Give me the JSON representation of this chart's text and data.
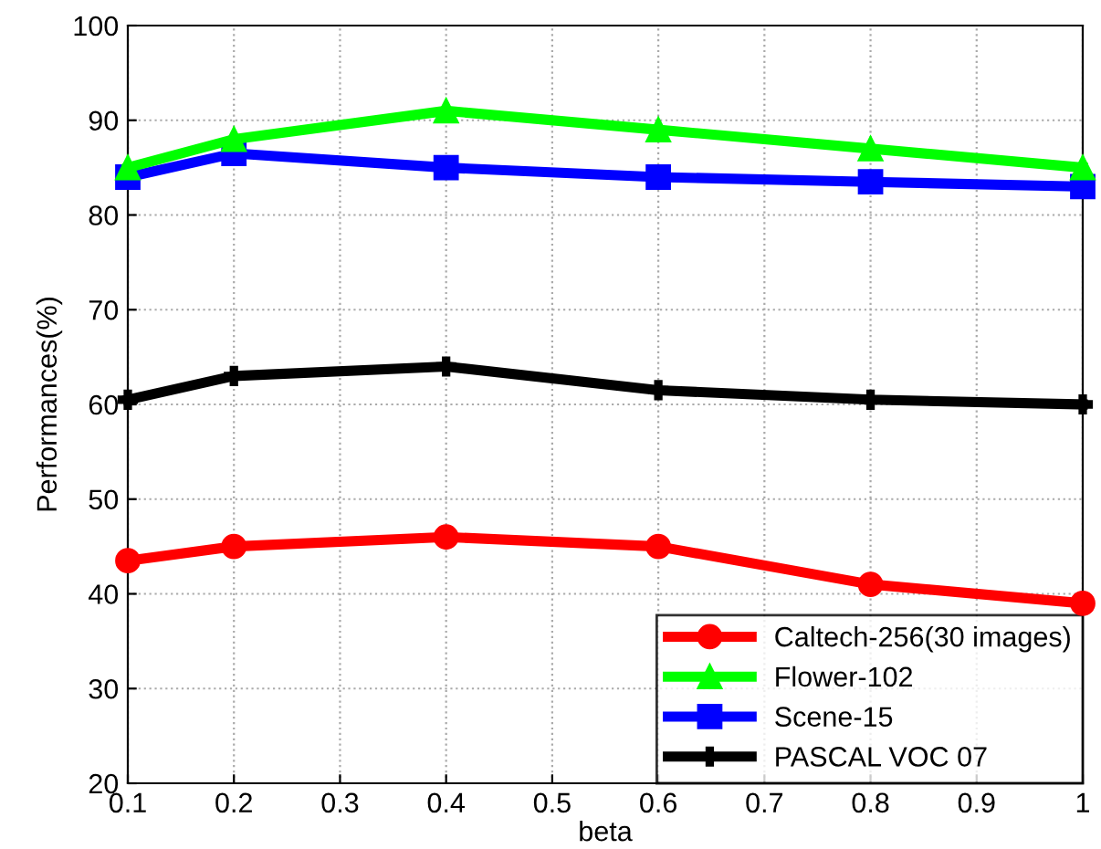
{
  "chart_data": {
    "type": "line",
    "xlabel": "beta",
    "ylabel": "Performances(%)",
    "x": [
      0.1,
      0.2,
      0.4,
      0.6,
      0.8,
      1
    ],
    "series": [
      {
        "name": "Caltech-256(30 images)",
        "color": "#ff0000",
        "marker": "circle",
        "values": [
          43.5,
          45,
          46,
          45,
          41,
          39
        ]
      },
      {
        "name": "Flower-102",
        "color": "#00ff00",
        "marker": "triangle",
        "values": [
          85,
          88,
          91,
          89,
          87,
          85
        ]
      },
      {
        "name": "Scene-15",
        "color": "#0000ff",
        "marker": "square",
        "values": [
          84,
          86.5,
          85,
          84,
          83.5,
          83
        ]
      },
      {
        "name": "PASCAL VOC 07",
        "color": "#000000",
        "marker": "cross",
        "values": [
          60.5,
          63,
          64,
          61.5,
          60.5,
          60
        ]
      }
    ],
    "xlim": [
      0.1,
      1
    ],
    "xticks": [
      0.1,
      0.2,
      0.3,
      0.4,
      0.5,
      0.6,
      0.7,
      0.8,
      0.9,
      1
    ],
    "ylim": [
      20,
      100
    ],
    "yticks": [
      20,
      30,
      40,
      50,
      60,
      70,
      80,
      90,
      100
    ],
    "grid": true,
    "line_style": "solid",
    "legend": "bottom right"
  }
}
